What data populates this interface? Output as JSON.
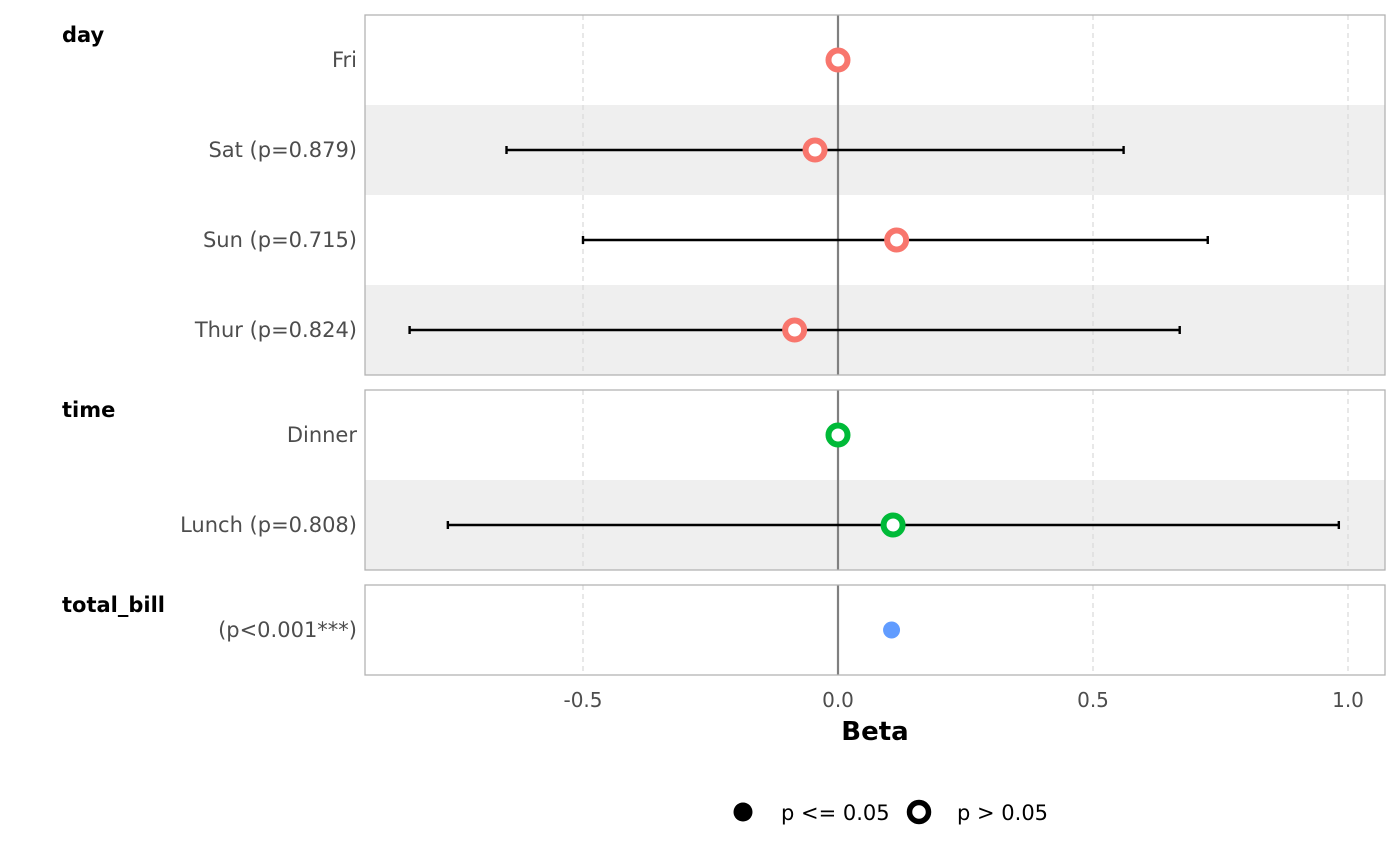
{
  "chart_data": {
    "type": "forest",
    "xlabel": "Beta",
    "xlim": [
      -0.93,
      1.07
    ],
    "x_ticks": [
      {
        "value": -0.5,
        "label": "-0.5"
      },
      {
        "value": 0.0,
        "label": "0.0"
      },
      {
        "value": 0.5,
        "label": "0.5"
      },
      {
        "value": 1.0,
        "label": "1.0"
      }
    ],
    "reference_line": 0,
    "grid": "vertical dashed",
    "groups": [
      {
        "name": "day",
        "color": "#F8766D",
        "rows": [
          {
            "label": "Fri",
            "estimate": 0.0,
            "ci_low": null,
            "ci_high": null,
            "significant": false
          },
          {
            "label": "Sat (p=0.879)",
            "estimate": -0.045,
            "ci_low": -0.65,
            "ci_high": 0.56,
            "significant": false
          },
          {
            "label": "Sun (p=0.715)",
            "estimate": 0.115,
            "ci_low": -0.5,
            "ci_high": 0.725,
            "significant": false
          },
          {
            "label": "Thur (p=0.824)",
            "estimate": -0.085,
            "ci_low": -0.84,
            "ci_high": 0.67,
            "significant": false
          }
        ]
      },
      {
        "name": "time",
        "color": "#00BA38",
        "rows": [
          {
            "label": "Dinner",
            "estimate": 0.0,
            "ci_low": null,
            "ci_high": null,
            "significant": false
          },
          {
            "label": "Lunch (p=0.808)",
            "estimate": 0.108,
            "ci_low": -0.765,
            "ci_high": 0.982,
            "significant": false
          }
        ]
      },
      {
        "name": "total_bill",
        "color": "#619CFF",
        "rows": [
          {
            "label": "(p<0.001***)",
            "estimate": 0.105,
            "ci_low": 0.09,
            "ci_high": 0.12,
            "significant": true
          }
        ]
      }
    ],
    "legend": {
      "placement": "bottom",
      "items": [
        {
          "label": "p <= 0.05",
          "shape": "filled-circle"
        },
        {
          "label": "p > 0.05",
          "shape": "hollow-circle"
        }
      ]
    }
  }
}
